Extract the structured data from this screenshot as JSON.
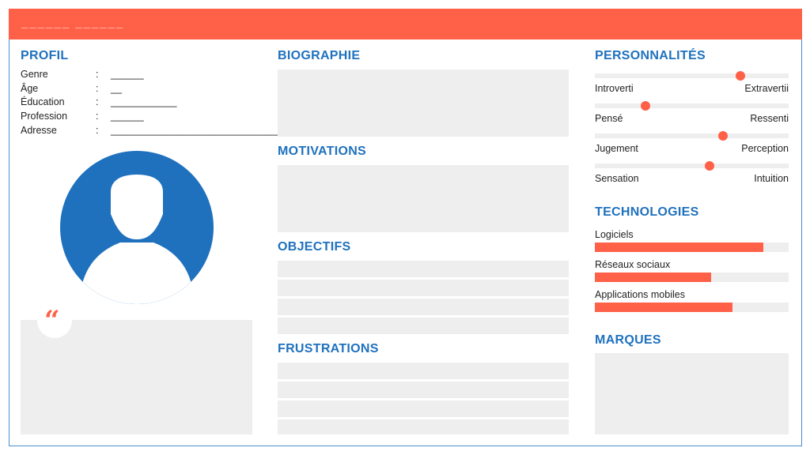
{
  "header": {
    "title": "______  ______"
  },
  "profile": {
    "heading": "PROFIL",
    "rows": [
      {
        "label": "Genre",
        "value": "______"
      },
      {
        "label": "Âge",
        "value": "__"
      },
      {
        "label": "Éducation",
        "value": "____________"
      },
      {
        "label": "Profession",
        "value": "______"
      },
      {
        "label": "Adresse",
        "value": "_________________________________"
      }
    ],
    "colon": ":"
  },
  "quote": {
    "icon": "quote-icon",
    "glyph": "“"
  },
  "biography": {
    "heading": "BIOGRAPHIE"
  },
  "motivations": {
    "heading": "MOTIVATIONS"
  },
  "objectives": {
    "heading": "OBJECTIFS"
  },
  "frustrations": {
    "heading": "FRUSTRATIONS"
  },
  "personalities": {
    "heading": "PERSONNALITÉS",
    "traits": [
      {
        "left": "Introverti",
        "right": "Extravertii",
        "position": 0.75
      },
      {
        "left": "Pensé",
        "right": "Ressenti",
        "position": 0.26
      },
      {
        "left": "Jugement",
        "right": "Perception",
        "position": 0.66
      },
      {
        "left": "Sensation",
        "right": "Intuition",
        "position": 0.59
      }
    ]
  },
  "technologies": {
    "heading": "TECHNOLOGIES",
    "items": [
      {
        "label": "Logiciels",
        "level": 0.87
      },
      {
        "label": "Réseaux sociaux",
        "level": 0.6
      },
      {
        "label": "Applications mobiles",
        "level": 0.71
      }
    ]
  },
  "brands": {
    "heading": "MARQUES"
  },
  "colors": {
    "accent": "#ff6048",
    "heading": "#1f71be",
    "avatar": "#1f71be",
    "placeholder": "#eeeeee"
  }
}
